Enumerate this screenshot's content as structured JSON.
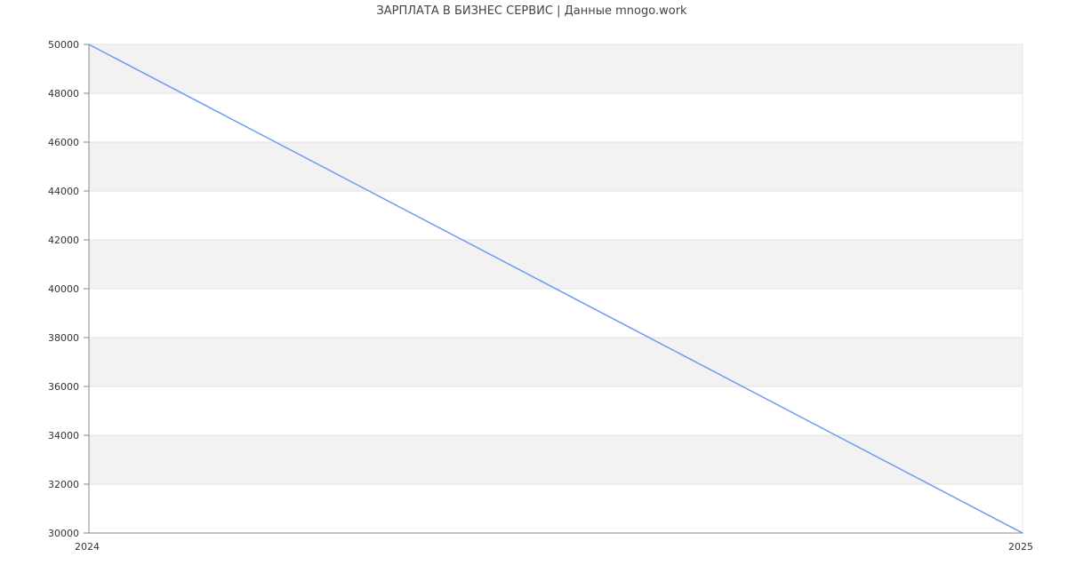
{
  "chart_data": {
    "type": "line",
    "title": "ЗАРПЛАТА В БИЗНЕС СЕРВИС | Данные mnogo.work",
    "xlabel": "",
    "ylabel": "",
    "categories": [
      "2024",
      "2025"
    ],
    "series": [
      {
        "values": [
          50000,
          30000
        ],
        "color": "#6d9af5"
      }
    ],
    "ylim": [
      30000,
      50000
    ],
    "yticks": [
      "30000",
      "32000",
      "34000",
      "36000",
      "38000",
      "40000",
      "42000",
      "44000",
      "46000",
      "48000",
      "50000"
    ],
    "grid": true,
    "band_color": "#f2f2f2"
  }
}
